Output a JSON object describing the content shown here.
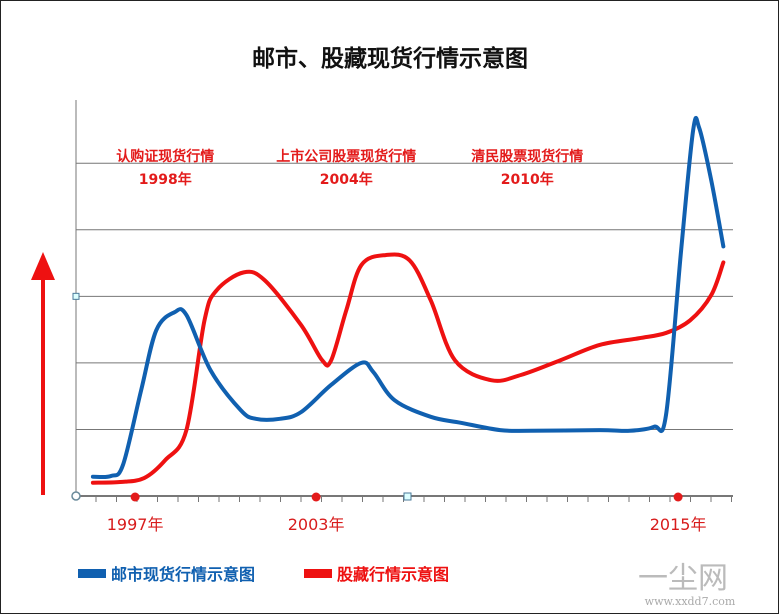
{
  "chart_data": {
    "type": "line",
    "title": "邮市、股藏现货行情示意图",
    "xlabel": "",
    "ylabel": "",
    "xlim": [
      1995.04,
      2016.82
    ],
    "ylim": [
      0,
      5.95
    ],
    "grid": true,
    "legend_placement": "bottom-left",
    "x_tick_labels": [
      {
        "x": 1997,
        "label": "1997年"
      },
      {
        "x": 2003,
        "label": "2003年"
      },
      {
        "x": 2015,
        "label": "2015年"
      }
    ],
    "annotations": [
      {
        "x": 1998,
        "line1": "认购证现货行情",
        "line2": "1998年"
      },
      {
        "x": 2004,
        "line1": "上市公司股票现货行情",
        "line2": "2004年"
      },
      {
        "x": 2010,
        "line1": "清民股票现货行情",
        "line2": "2010年"
      }
    ],
    "series": [
      {
        "name": "邮市现货行情示意图",
        "color": "#1060b0",
        "x": [
          1995.6,
          1996.2,
          1996.6,
          1997.2,
          1997.7,
          1998.3,
          1998.7,
          1999.5,
          2000.5,
          2001.0,
          2001.8,
          2002.5,
          2003.5,
          2004.5,
          2004.9,
          2005.6,
          2006.8,
          2007.8,
          2009.1,
          2010.1,
          2012.4,
          2013.4,
          2014.2,
          2014.6,
          2015.1,
          2015.5,
          2015.7,
          2016.1,
          2016.5
        ],
        "y": [
          0.29,
          0.3,
          0.47,
          1.59,
          2.49,
          2.76,
          2.72,
          1.89,
          1.29,
          1.16,
          1.16,
          1.26,
          1.67,
          2.0,
          1.86,
          1.44,
          1.19,
          1.1,
          0.99,
          0.98,
          0.99,
          0.98,
          1.04,
          1.22,
          3.69,
          5.5,
          5.53,
          4.74,
          3.75
        ]
      },
      {
        "name": "股藏行情示意图",
        "color": "#ee1111",
        "x": [
          1995.6,
          1996.5,
          1997.3,
          1998.0,
          1998.7,
          1999.3,
          1999.7,
          2000.6,
          2001.3,
          2002.5,
          2003.2,
          2003.5,
          2004.0,
          2004.5,
          2005.3,
          2006.1,
          2006.8,
          2007.6,
          2008.8,
          2009.8,
          2011.1,
          2012.4,
          2013.7,
          2014.6,
          2015.4,
          2016.1,
          2016.5
        ],
        "y": [
          0.2,
          0.21,
          0.27,
          0.54,
          0.99,
          2.64,
          3.09,
          3.36,
          3.24,
          2.57,
          2.04,
          2.04,
          2.79,
          3.47,
          3.62,
          3.54,
          2.94,
          2.04,
          1.74,
          1.82,
          2.04,
          2.27,
          2.37,
          2.45,
          2.64,
          3.02,
          3.51
        ]
      }
    ],
    "arrow_color": "#ee1111"
  },
  "watermark": {
    "logo": "一尘网",
    "url": "www.xxdd7.com"
  }
}
